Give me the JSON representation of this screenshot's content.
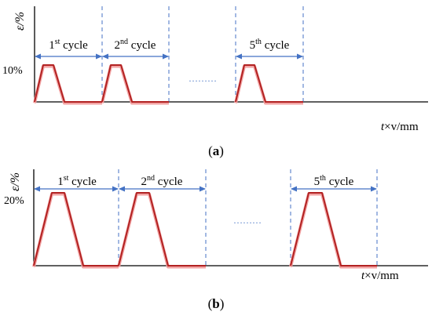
{
  "panels": [
    {
      "id": "a",
      "panel_label_open": "(",
      "panel_label": "a",
      "panel_label_close": ")",
      "y_axis_label": "ε/%",
      "x_axis_label": "t×v/mm",
      "peak_strain_label": "10%",
      "cycle_labels": [
        {
          "num": "1",
          "sup": "st",
          "word": " cycle"
        },
        {
          "num": "2",
          "sup": "nd",
          "word": " cycle"
        },
        {
          "num": "5",
          "sup": "th",
          "word": " cycle"
        }
      ],
      "ellipsis": "………"
    },
    {
      "id": "b",
      "panel_label_open": "(",
      "panel_label": "b",
      "panel_label_close": ")",
      "y_axis_label": "ε/%",
      "x_axis_label": "t×v/mm",
      "peak_strain_label": "20%",
      "cycle_labels": [
        {
          "num": "1",
          "sup": "st",
          "word": " cycle"
        },
        {
          "num": "2",
          "sup": "nd",
          "word": " cycle"
        },
        {
          "num": "5",
          "sup": "th",
          "word": " cycle"
        }
      ],
      "ellipsis": "………"
    }
  ],
  "colors": {
    "waveform": "#b22222",
    "waveform_shadow": "#f2a3a3",
    "cycle_marker": "#4472c4",
    "axis": "#000000"
  }
}
